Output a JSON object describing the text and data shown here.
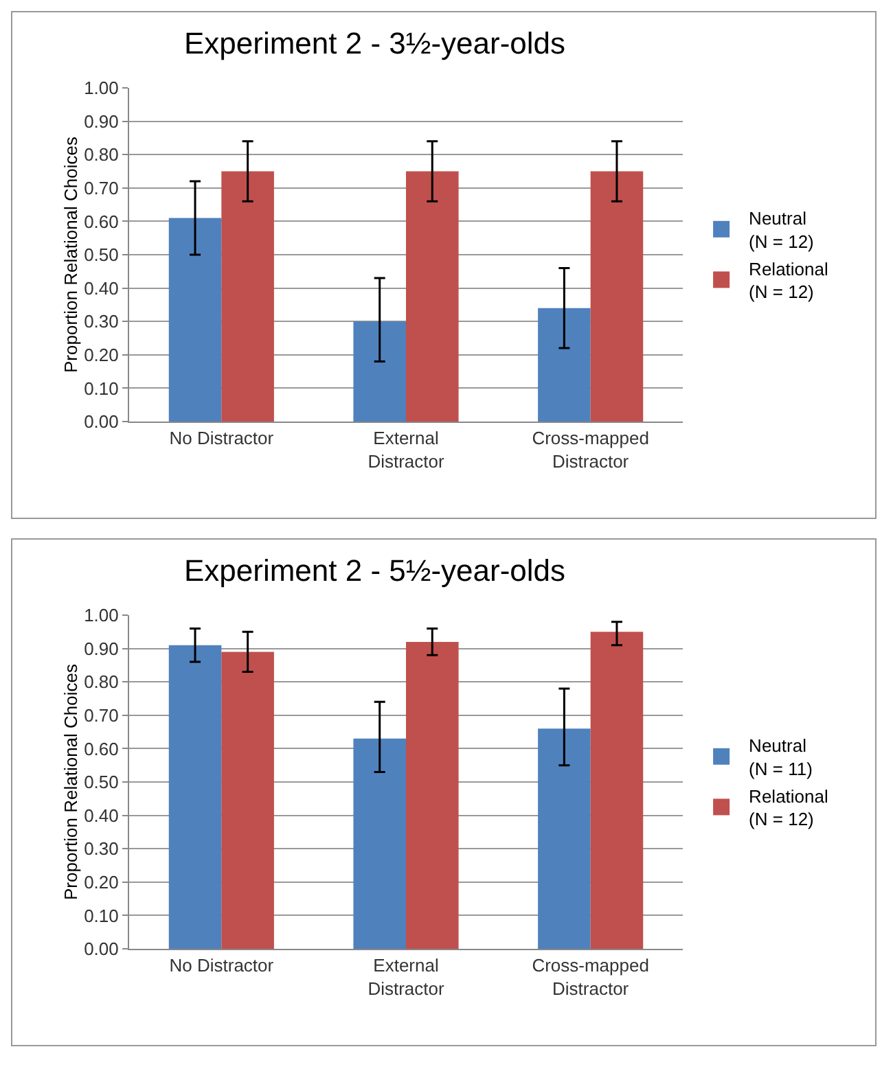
{
  "chart_data": [
    {
      "type": "bar",
      "title": "Experiment 2 - 3½-year-olds",
      "ylabel": "Proportion Relational Choices",
      "categories": [
        "No Distractor",
        "External\nDistractor",
        "Cross-mapped\nDistractor"
      ],
      "series": [
        {
          "name": "Neutral\n(N = 12)",
          "color": "#4f81bd",
          "values": [
            0.61,
            0.3,
            0.34
          ],
          "errors": [
            [
              0.5,
              0.72
            ],
            [
              0.18,
              0.43
            ],
            [
              0.22,
              0.46
            ]
          ]
        },
        {
          "name": "Relational\n(N = 12)",
          "color": "#c0504d",
          "values": [
            0.75,
            0.75,
            0.75
          ],
          "errors": [
            [
              0.66,
              0.84
            ],
            [
              0.66,
              0.84
            ],
            [
              0.66,
              0.84
            ]
          ]
        }
      ],
      "ylim": [
        0,
        1
      ],
      "yticks": [
        {
          "value": 0,
          "label": "0.00"
        },
        {
          "value": 0.1,
          "label": "0.10"
        },
        {
          "value": 0.2,
          "label": "0.20"
        },
        {
          "value": 0.3,
          "label": "0.30"
        },
        {
          "value": 0.4,
          "label": "0.40"
        },
        {
          "value": 0.5,
          "label": "0.50"
        },
        {
          "value": 0.6,
          "label": "0.60"
        },
        {
          "value": 0.7,
          "label": "0.70"
        },
        {
          "value": 0.8,
          "label": "0.80"
        },
        {
          "value": 0.9,
          "label": "0.90"
        },
        {
          "value": 1,
          "label": "1.00"
        }
      ],
      "grid": "y",
      "legend": "right"
    },
    {
      "type": "bar",
      "title": "Experiment 2 - 5½-year-olds",
      "ylabel": "Proportion Relational Choices",
      "categories": [
        "No Distractor",
        "External\nDistractor",
        "Cross-mapped\nDistractor"
      ],
      "series": [
        {
          "name": "Neutral\n(N = 11)",
          "color": "#4f81bd",
          "values": [
            0.91,
            0.63,
            0.66
          ],
          "errors": [
            [
              0.86,
              0.96
            ],
            [
              0.53,
              0.74
            ],
            [
              0.55,
              0.78
            ]
          ]
        },
        {
          "name": "Relational\n(N = 12)",
          "color": "#c0504d",
          "values": [
            0.89,
            0.92,
            0.95
          ],
          "errors": [
            [
              0.83,
              0.95
            ],
            [
              0.88,
              0.96
            ],
            [
              0.91,
              0.98
            ]
          ]
        }
      ],
      "ylim": [
        0,
        1
      ],
      "yticks": [
        {
          "value": 0,
          "label": "0.00"
        },
        {
          "value": 0.1,
          "label": "0.10"
        },
        {
          "value": 0.2,
          "label": "0.20"
        },
        {
          "value": 0.3,
          "label": "0.30"
        },
        {
          "value": 0.4,
          "label": "0.40"
        },
        {
          "value": 0.5,
          "label": "0.50"
        },
        {
          "value": 0.6,
          "label": "0.60"
        },
        {
          "value": 0.7,
          "label": "0.70"
        },
        {
          "value": 0.8,
          "label": "0.80"
        },
        {
          "value": 0.9,
          "label": "0.90"
        },
        {
          "value": 1,
          "label": "1.00"
        }
      ],
      "grid": "y",
      "legend": "right"
    }
  ]
}
